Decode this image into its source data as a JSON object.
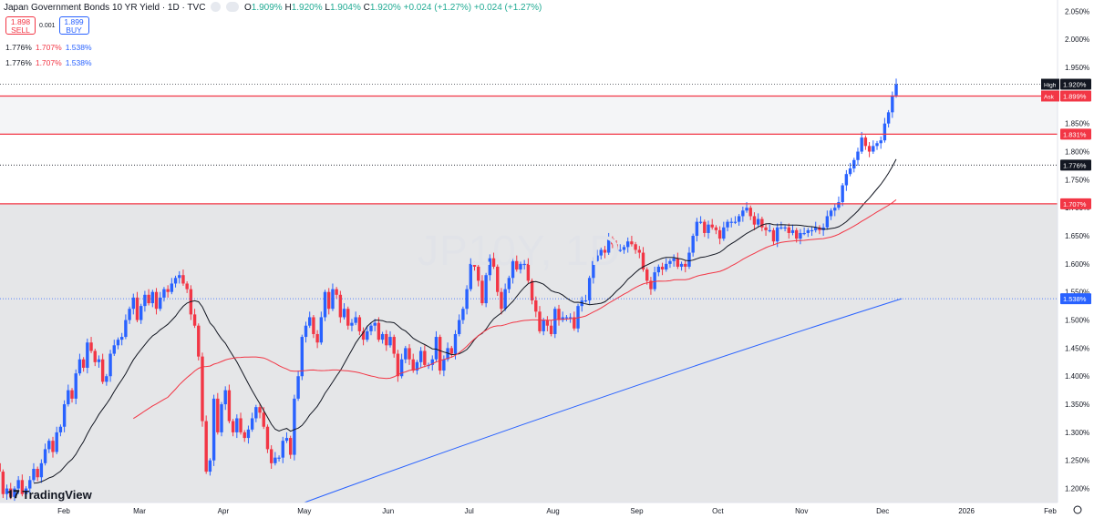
{
  "header": {
    "title": "Japan Government Bonds 10 YR Yield · 1D · TVC",
    "ohlc": [
      {
        "label": "O",
        "value": "1.909%"
      },
      {
        "label": "H",
        "value": "1.920%"
      },
      {
        "label": "L",
        "value": "1.904%"
      },
      {
        "label": "C",
        "value": "1.920%"
      }
    ],
    "change": "+0.024 (+1.27%)",
    "change2": "+0.024 (+1.27%)"
  },
  "trade": {
    "sell_price": "1.898",
    "sell_label": "SELL",
    "spread": "0.001",
    "buy_price": "1.899",
    "buy_label": "BUY"
  },
  "ma_rows": [
    {
      "a": "1.776%",
      "b": "1.707%",
      "c": "1.538%"
    },
    {
      "a": "1.776%",
      "b": "1.707%",
      "c": "1.538%"
    }
  ],
  "watermark": "JP10Y, 1D",
  "logo": "TradingView",
  "colors": {
    "up": "#2962ff",
    "down": "#f23645",
    "ma_short": "#131722",
    "ma_mid": "#f23645",
    "ma_long": "#2962ff",
    "hline": "#f23645"
  },
  "chart_data": {
    "type": "candlestick",
    "ylim": [
      1.175,
      2.07
    ],
    "y_ticks": [
      "1.200%",
      "1.250%",
      "1.300%",
      "1.350%",
      "1.400%",
      "1.450%",
      "1.500%",
      "1.550%",
      "1.600%",
      "1.650%",
      "1.700%",
      "1.750%",
      "1.800%",
      "1.850%",
      "1.900%",
      "1.950%",
      "2.000%",
      "2.050%"
    ],
    "x_ticks": [
      "Feb",
      "Mar",
      "Apr",
      "May",
      "Jun",
      "Jul",
      "Aug",
      "Sep",
      "Oct",
      "Nov",
      "Dec",
      "2026",
      "Feb"
    ],
    "x_tick_days": [
      31,
      59,
      90,
      120,
      151,
      181,
      212,
      243,
      273,
      304,
      334,
      365,
      396
    ],
    "last_day": 339,
    "horizontal_levels": [
      1.899,
      1.831,
      1.707
    ],
    "price_labels": [
      {
        "text": "High",
        "value": "1.920%",
        "y": 1.92,
        "bg": "#131722"
      },
      {
        "text": "Ask",
        "value": "1.899%",
        "y": 1.899,
        "bg": "#f23645"
      },
      {
        "text": "",
        "value": "1.831%",
        "y": 1.831,
        "bg": "#f23645"
      },
      {
        "text": "",
        "value": "1.776%",
        "y": 1.776,
        "bg": "#131722"
      },
      {
        "text": "",
        "value": "1.707%",
        "y": 1.707,
        "bg": "#f23645"
      },
      {
        "text": "",
        "value": "1.538%",
        "y": 1.538,
        "bg": "#2962ff"
      }
    ],
    "closes": [
      1.205,
      1.215,
      1.195,
      1.22,
      1.245,
      1.23,
      1.19,
      1.2,
      1.185,
      1.2,
      1.215,
      1.19,
      1.2,
      1.215,
      1.235,
      1.22,
      1.245,
      1.27,
      1.285,
      1.265,
      1.3,
      1.31,
      1.35,
      1.375,
      1.36,
      1.405,
      1.43,
      1.415,
      1.46,
      1.445,
      1.425,
      1.43,
      1.39,
      1.4,
      1.44,
      1.455,
      1.465,
      1.47,
      1.5,
      1.52,
      1.54,
      1.5,
      1.525,
      1.545,
      1.53,
      1.55,
      1.52,
      1.54,
      1.555,
      1.55,
      1.565,
      1.575,
      1.58,
      1.565,
      1.555,
      1.51,
      1.49,
      1.435,
      1.32,
      1.23,
      1.25,
      1.36,
      1.3,
      1.35,
      1.375,
      1.32,
      1.3,
      1.325,
      1.3,
      1.29,
      1.305,
      1.325,
      1.345,
      1.335,
      1.31,
      1.27,
      1.245,
      1.255,
      1.255,
      1.285,
      1.29,
      1.26,
      1.36,
      1.4,
      1.47,
      1.49,
      1.505,
      1.475,
      1.46,
      1.505,
      1.55,
      1.52,
      1.555,
      1.545,
      1.505,
      1.52,
      1.49,
      1.495,
      1.505,
      1.48,
      1.465,
      1.48,
      1.49,
      1.495,
      1.465,
      1.475,
      1.455,
      1.47,
      1.44,
      1.4,
      1.43,
      1.45,
      1.43,
      1.41,
      1.425,
      1.445,
      1.42,
      1.42,
      1.43,
      1.47,
      1.41,
      1.43,
      1.45,
      1.44,
      1.475,
      1.5,
      1.52,
      1.555,
      1.6,
      1.595,
      1.57,
      1.53,
      1.58,
      1.61,
      1.595,
      1.55,
      1.52,
      1.555,
      1.575,
      1.605,
      1.59,
      1.6,
      1.6,
      1.57,
      1.535,
      1.515,
      1.48,
      1.5,
      1.49,
      1.475,
      1.52,
      1.5,
      1.505,
      1.505,
      1.505,
      1.485,
      1.525,
      1.535,
      1.535,
      1.575,
      1.605,
      1.615,
      1.625,
      1.62,
      1.645,
      1.635,
      1.625,
      1.625,
      1.63,
      1.64,
      1.635,
      1.625,
      1.62,
      1.59,
      1.57,
      1.555,
      1.585,
      1.595,
      1.59,
      1.6,
      1.605,
      1.61,
      1.595,
      1.6,
      1.595,
      1.62,
      1.65,
      1.675,
      1.675,
      1.655,
      1.67,
      1.665,
      1.66,
      1.645,
      1.665,
      1.675,
      1.675,
      1.675,
      1.685,
      1.695,
      1.7,
      1.685,
      1.67,
      1.68,
      1.665,
      1.66,
      1.66,
      1.64,
      1.665,
      1.665,
      1.665,
      1.655,
      1.66,
      1.645,
      1.655,
      1.655,
      1.66,
      1.66,
      1.665,
      1.66,
      1.665,
      1.685,
      1.695,
      1.7,
      1.71,
      1.74,
      1.76,
      1.77,
      1.785,
      1.8,
      1.825,
      1.81,
      1.8,
      1.81,
      1.815,
      1.82,
      1.85,
      1.87,
      1.9,
      1.92
    ]
  }
}
